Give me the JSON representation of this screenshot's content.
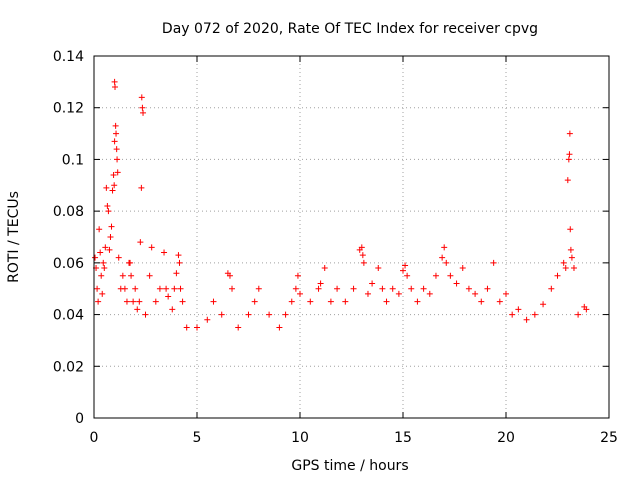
{
  "chart_data": {
    "type": "scatter",
    "title": "Day 072 of 2020, Rate Of TEC Index for receiver cpvg",
    "xlabel": "GPS time / hours",
    "ylabel": "ROTI / TECUs",
    "xlim": [
      0,
      25
    ],
    "ylim": [
      0,
      0.14
    ],
    "x_ticks": [
      "0",
      "5",
      "10",
      "15",
      "20",
      "25"
    ],
    "y_ticks": [
      "0",
      "0.02",
      "0.04",
      "0.06",
      "0.08",
      "0.1",
      "0.12",
      "0.14"
    ],
    "grid": true,
    "marker": "+",
    "color": "#ff0000",
    "points": [
      [
        0.05,
        0.062
      ],
      [
        0.1,
        0.058
      ],
      [
        0.15,
        0.05
      ],
      [
        0.2,
        0.045
      ],
      [
        0.25,
        0.073
      ],
      [
        0.3,
        0.064
      ],
      [
        0.35,
        0.055
      ],
      [
        0.4,
        0.048
      ],
      [
        0.45,
        0.06
      ],
      [
        0.5,
        0.058
      ],
      [
        0.55,
        0.066
      ],
      [
        0.6,
        0.089
      ],
      [
        0.65,
        0.082
      ],
      [
        0.7,
        0.08
      ],
      [
        0.75,
        0.065
      ],
      [
        0.8,
        0.07
      ],
      [
        0.85,
        0.074
      ],
      [
        0.9,
        0.088
      ],
      [
        0.95,
        0.094
      ],
      [
        1.0,
        0.13
      ],
      [
        1.02,
        0.128
      ],
      [
        1.05,
        0.113
      ],
      [
        1.07,
        0.11
      ],
      [
        1.1,
        0.104
      ],
      [
        1.12,
        0.1
      ],
      [
        1.15,
        0.095
      ],
      [
        1.0,
        0.107
      ],
      [
        0.98,
        0.09
      ],
      [
        1.2,
        0.062
      ],
      [
        1.3,
        0.05
      ],
      [
        1.4,
        0.055
      ],
      [
        1.5,
        0.05
      ],
      [
        1.6,
        0.045
      ],
      [
        1.7,
        0.06
      ],
      [
        1.75,
        0.06
      ],
      [
        1.8,
        0.055
      ],
      [
        1.9,
        0.045
      ],
      [
        2.0,
        0.05
      ],
      [
        2.1,
        0.042
      ],
      [
        2.2,
        0.045
      ],
      [
        2.25,
        0.068
      ],
      [
        2.3,
        0.089
      ],
      [
        2.32,
        0.124
      ],
      [
        2.35,
        0.12
      ],
      [
        2.38,
        0.118
      ],
      [
        2.5,
        0.04
      ],
      [
        2.7,
        0.055
      ],
      [
        2.8,
        0.066
      ],
      [
        3.0,
        0.045
      ],
      [
        3.2,
        0.05
      ],
      [
        3.4,
        0.064
      ],
      [
        3.5,
        0.05
      ],
      [
        3.6,
        0.047
      ],
      [
        3.8,
        0.042
      ],
      [
        3.9,
        0.05
      ],
      [
        4.0,
        0.056
      ],
      [
        4.1,
        0.063
      ],
      [
        4.15,
        0.06
      ],
      [
        4.2,
        0.05
      ],
      [
        4.3,
        0.045
      ],
      [
        4.5,
        0.035
      ],
      [
        5.0,
        0.035
      ],
      [
        5.5,
        0.038
      ],
      [
        5.8,
        0.045
      ],
      [
        6.2,
        0.04
      ],
      [
        6.5,
        0.056
      ],
      [
        6.6,
        0.055
      ],
      [
        6.7,
        0.05
      ],
      [
        7.0,
        0.035
      ],
      [
        7.5,
        0.04
      ],
      [
        7.8,
        0.045
      ],
      [
        8.0,
        0.05
      ],
      [
        8.5,
        0.04
      ],
      [
        9.0,
        0.035
      ],
      [
        9.3,
        0.04
      ],
      [
        9.6,
        0.045
      ],
      [
        9.8,
        0.05
      ],
      [
        9.9,
        0.055
      ],
      [
        10.0,
        0.048
      ],
      [
        10.5,
        0.045
      ],
      [
        10.9,
        0.05
      ],
      [
        11.0,
        0.052
      ],
      [
        11.2,
        0.058
      ],
      [
        11.5,
        0.045
      ],
      [
        11.8,
        0.05
      ],
      [
        12.2,
        0.045
      ],
      [
        12.6,
        0.05
      ],
      [
        12.9,
        0.065
      ],
      [
        13.0,
        0.066
      ],
      [
        13.05,
        0.063
      ],
      [
        13.1,
        0.06
      ],
      [
        13.3,
        0.048
      ],
      [
        13.5,
        0.052
      ],
      [
        13.8,
        0.058
      ],
      [
        14.0,
        0.05
      ],
      [
        14.2,
        0.045
      ],
      [
        14.5,
        0.05
      ],
      [
        14.8,
        0.048
      ],
      [
        15.0,
        0.057
      ],
      [
        15.1,
        0.059
      ],
      [
        15.2,
        0.055
      ],
      [
        15.4,
        0.05
      ],
      [
        15.7,
        0.045
      ],
      [
        16.0,
        0.05
      ],
      [
        16.3,
        0.048
      ],
      [
        16.6,
        0.055
      ],
      [
        16.9,
        0.062
      ],
      [
        17.0,
        0.066
      ],
      [
        17.1,
        0.06
      ],
      [
        17.3,
        0.055
      ],
      [
        17.6,
        0.052
      ],
      [
        17.9,
        0.058
      ],
      [
        18.2,
        0.05
      ],
      [
        18.5,
        0.048
      ],
      [
        18.8,
        0.045
      ],
      [
        19.1,
        0.05
      ],
      [
        19.4,
        0.06
      ],
      [
        19.7,
        0.045
      ],
      [
        20.0,
        0.048
      ],
      [
        20.3,
        0.04
      ],
      [
        20.6,
        0.042
      ],
      [
        21.0,
        0.038
      ],
      [
        21.4,
        0.04
      ],
      [
        21.8,
        0.044
      ],
      [
        22.2,
        0.05
      ],
      [
        22.5,
        0.055
      ],
      [
        22.8,
        0.06
      ],
      [
        22.9,
        0.058
      ],
      [
        23.0,
        0.092
      ],
      [
        23.05,
        0.1
      ],
      [
        23.08,
        0.102
      ],
      [
        23.1,
        0.11
      ],
      [
        23.12,
        0.073
      ],
      [
        23.15,
        0.065
      ],
      [
        23.2,
        0.062
      ],
      [
        23.3,
        0.058
      ],
      [
        23.5,
        0.04
      ],
      [
        23.8,
        0.043
      ],
      [
        23.9,
        0.042
      ]
    ]
  }
}
